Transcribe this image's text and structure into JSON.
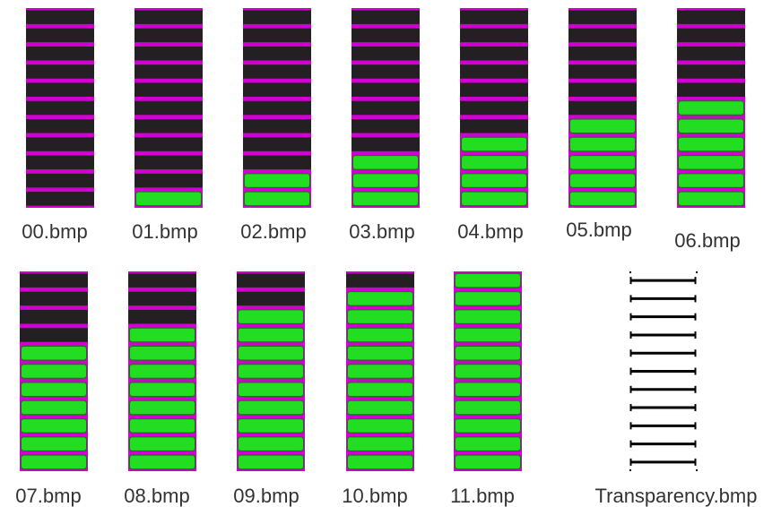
{
  "total_segments": 11,
  "colors": {
    "background": "#ffffff",
    "separator": "#d000d0",
    "off_segment": "#231f22",
    "on_segment": "#22dd22",
    "on_outline": "#0b7a0b",
    "transparency_line": "#000000",
    "label_text": "#333333"
  },
  "meters": [
    {
      "file": "00.bmp",
      "lit_segments": 0
    },
    {
      "file": "01.bmp",
      "lit_segments": 1
    },
    {
      "file": "02.bmp",
      "lit_segments": 2
    },
    {
      "file": "03.bmp",
      "lit_segments": 3
    },
    {
      "file": "04.bmp",
      "lit_segments": 4
    },
    {
      "file": "05.bmp",
      "lit_segments": 5
    },
    {
      "file": "06.bmp",
      "lit_segments": 6
    },
    {
      "file": "07.bmp",
      "lit_segments": 7
    },
    {
      "file": "08.bmp",
      "lit_segments": 8
    },
    {
      "file": "09.bmp",
      "lit_segments": 9
    },
    {
      "file": "10.bmp",
      "lit_segments": 10
    },
    {
      "file": "11.bmp",
      "lit_segments": 11
    }
  ],
  "transparency": {
    "file": "Transparency.bmp"
  }
}
